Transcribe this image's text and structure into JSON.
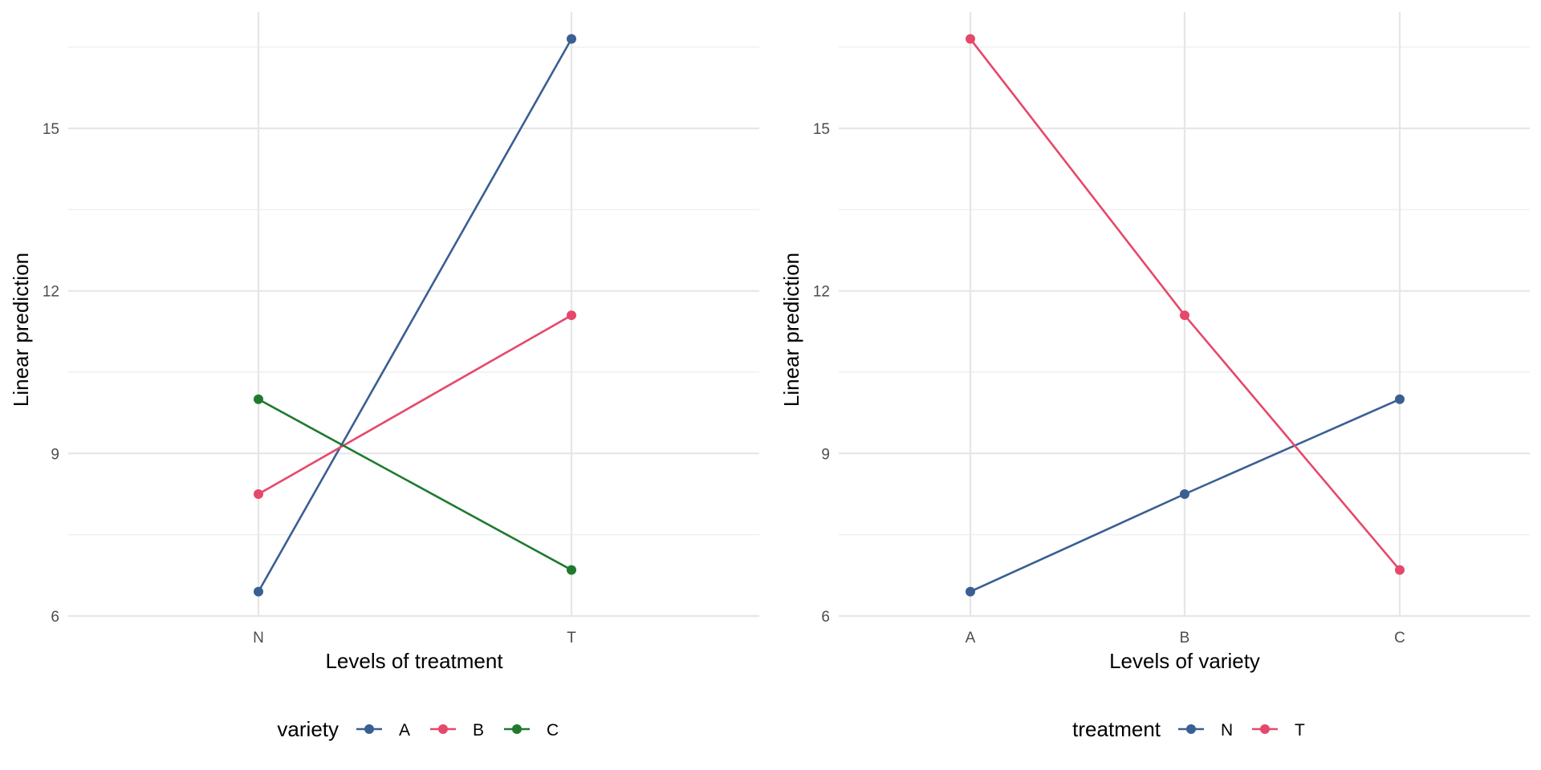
{
  "chart_data": [
    {
      "type": "line",
      "title": "",
      "xlabel": "Levels of treatment",
      "ylabel": "Linear prediction",
      "categories": [
        "N",
        "T"
      ],
      "yticks": [
        "6",
        "9",
        "12",
        "15"
      ],
      "ylim": [
        5.5,
        17.8
      ],
      "grid": true,
      "legend": {
        "title": "variety",
        "position": "bottom"
      },
      "series": [
        {
          "name": "A",
          "color": "#3a5f92",
          "values": [
            6.45,
            16.65
          ]
        },
        {
          "name": "B",
          "color": "#e5486b",
          "values": [
            8.25,
            11.55
          ]
        },
        {
          "name": "C",
          "color": "#1f7a2e",
          "values": [
            10.0,
            6.85
          ]
        }
      ]
    },
    {
      "type": "line",
      "title": "",
      "xlabel": "Levels of variety",
      "ylabel": "Linear prediction",
      "categories": [
        "A",
        "B",
        "C"
      ],
      "yticks": [
        "6",
        "9",
        "12",
        "15"
      ],
      "ylim": [
        5.5,
        17.8
      ],
      "grid": true,
      "legend": {
        "title": "treatment",
        "position": "bottom"
      },
      "series": [
        {
          "name": "N",
          "color": "#3a5f92",
          "values": [
            6.45,
            8.25,
            10.0
          ]
        },
        {
          "name": "T",
          "color": "#e5486b",
          "values": [
            16.65,
            11.55,
            6.85
          ]
        }
      ]
    }
  ]
}
